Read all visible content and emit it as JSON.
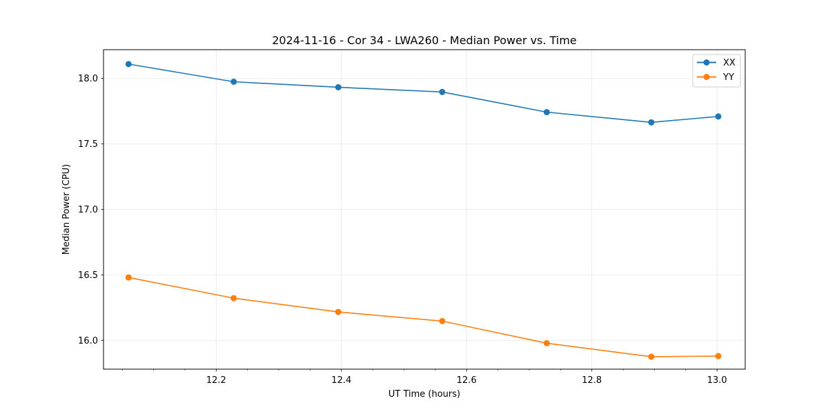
{
  "chart_data": {
    "type": "line",
    "title": "2024-11-16 - Cor 34 - LWA260 - Median Power vs. Time",
    "xlabel": "UT Time (hours)",
    "ylabel": "Median Power (CPU)",
    "xlim": [
      12.02,
      13.045
    ],
    "ylim": [
      15.78,
      18.22
    ],
    "xticks": [
      12.2,
      12.4,
      12.6,
      12.8,
      13.0
    ],
    "xtick_labels": [
      "12.2",
      "12.4",
      "12.6",
      "12.8",
      "13.0"
    ],
    "xminor_step": 0.05,
    "yticks": [
      16.0,
      16.5,
      17.0,
      17.5,
      18.0
    ],
    "ytick_labels": [
      "16.0",
      "16.5",
      "17.0",
      "17.5",
      "18.0"
    ],
    "grid": true,
    "legend_position": "top-right",
    "x": [
      12.06,
      12.228,
      12.395,
      12.561,
      12.728,
      12.895,
      13.002
    ],
    "series": [
      {
        "name": "XX",
        "color": "#1f77b4",
        "values": [
          18.11,
          17.975,
          17.933,
          17.897,
          17.743,
          17.665,
          17.71
        ]
      },
      {
        "name": "YY",
        "color": "#ff7f0e",
        "values": [
          16.48,
          16.322,
          16.217,
          16.147,
          15.978,
          15.875,
          15.88
        ]
      }
    ]
  }
}
